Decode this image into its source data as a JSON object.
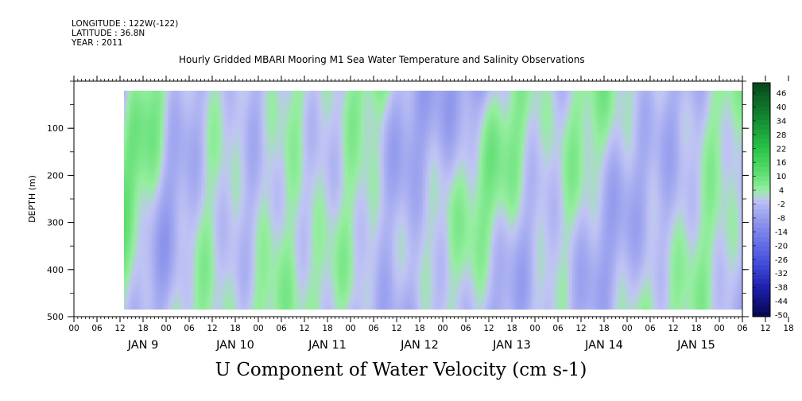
{
  "header": {
    "longitude": "LONGITUDE : 122W(-122)",
    "latitude": "LATITUDE : 36.8N",
    "year": "YEAR : 2011"
  },
  "chart_data": {
    "type": "heatmap",
    "title": "Hourly Gridded MBARI Mooring M1 Sea Water Temperature and Salinity Observations",
    "caption": "U Component of Water Velocity (cm s-1)",
    "xlabel": "",
    "ylabel": "DEPTH (m)",
    "x_axis": {
      "unit": "hour",
      "range": [
        "2011-01-08T18:00",
        "2011-01-16T00:00"
      ],
      "tick_labels": [
        "00",
        "06",
        "12",
        "18",
        "00",
        "06",
        "12",
        "18",
        "00",
        "06",
        "12",
        "18",
        "00",
        "06",
        "12",
        "18",
        "00",
        "06",
        "12",
        "18",
        "00",
        "06",
        "12",
        "18",
        "00",
        "06",
        "12",
        "18",
        "00",
        "06",
        "12",
        "18",
        "00"
      ],
      "day_labels": [
        "JAN  9",
        "JAN 10",
        "JAN 11",
        "JAN 12",
        "JAN 13",
        "JAN 14",
        "JAN 15"
      ]
    },
    "y_axis": {
      "range": [
        500,
        0
      ],
      "reversed": true,
      "tick_labels": [
        "100",
        "200",
        "300",
        "400",
        "500"
      ],
      "tick_values": [
        100,
        200,
        300,
        400,
        500
      ]
    },
    "data_extent": {
      "start": "2011-01-09T07:00",
      "end": "2011-01-16T00:00",
      "depth_min": 20,
      "depth_max": 485
    },
    "colorbar": {
      "labels": [
        "46",
        "40",
        "34",
        "28",
        "22",
        "16",
        "10",
        "4",
        "-2",
        "-8",
        "-14",
        "-20",
        "-26",
        "-32",
        "-38",
        "-44",
        "-50"
      ],
      "levels_min": -50,
      "levels_max": 50,
      "colors": {
        "strong_positive": "#0a4a1c",
        "positive": "#2ec84a",
        "weak_positive": "#8ff09a",
        "near_zero": "#c6c9f2",
        "weak_negative": "#a3a8ee",
        "negative": "#4f5de0",
        "strong_negative": "#06064a"
      }
    }
  }
}
